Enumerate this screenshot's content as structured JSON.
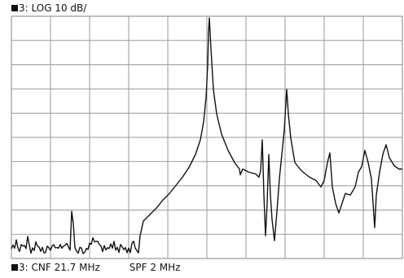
{
  "header": {
    "trace_marker": "■",
    "trace_label": "3: LOG 10 dB/"
  },
  "footer": {
    "trace_marker": "■",
    "center_label": "3: CNF 21.7 MHz",
    "span_label": "SPF 2 MHz"
  },
  "display": {
    "grid_divisions_x": 10,
    "grid_divisions_y": 10,
    "grid_color": "#9a9a9a",
    "trace_color": "#111111",
    "background_color": "#ffffff"
  }
}
